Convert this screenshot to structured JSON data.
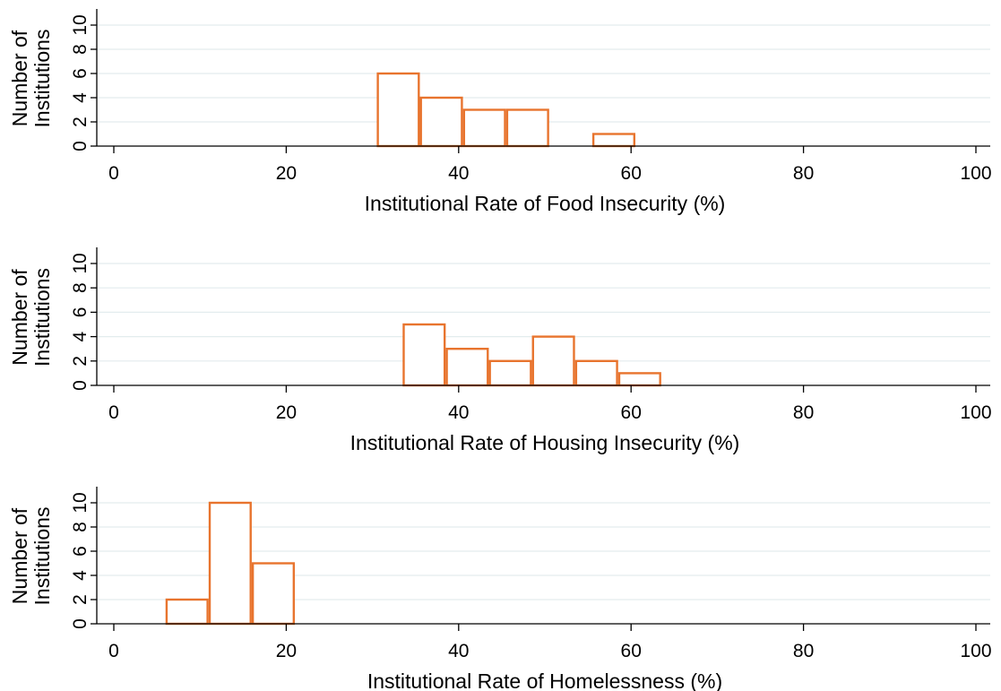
{
  "colors": {
    "bar_stroke": "#e8742e",
    "grid": "#e3ecee",
    "background": "#ffffff"
  },
  "chart_data": [
    {
      "type": "bar",
      "xlabel": "Institutional Rate of Food Insecurity (%)",
      "ylabel_lines": [
        "Number of",
        "Institutions"
      ],
      "xlim": [
        0,
        100
      ],
      "ylim": [
        0,
        10
      ],
      "xticks": [
        "0",
        "20",
        "40",
        "60",
        "80",
        "100"
      ],
      "yticks": [
        "0",
        "2",
        "4",
        "6",
        "8",
        "10"
      ],
      "grid": true,
      "bins": [
        {
          "start": 30.5,
          "end": 35.5,
          "count": 6
        },
        {
          "start": 35.5,
          "end": 40.5,
          "count": 4
        },
        {
          "start": 40.5,
          "end": 45.5,
          "count": 3
        },
        {
          "start": 45.5,
          "end": 50.5,
          "count": 3
        },
        {
          "start": 55.5,
          "end": 60.5,
          "count": 1
        }
      ]
    },
    {
      "type": "bar",
      "xlabel": "Institutional Rate of Housing Insecurity (%)",
      "ylabel_lines": [
        "Number of",
        "Institutions"
      ],
      "xlim": [
        0,
        100
      ],
      "ylim": [
        0,
        10
      ],
      "xticks": [
        "0",
        "20",
        "40",
        "60",
        "80",
        "100"
      ],
      "yticks": [
        "0",
        "2",
        "4",
        "6",
        "8",
        "10"
      ],
      "grid": true,
      "bins": [
        {
          "start": 33.5,
          "end": 38.5,
          "count": 5
        },
        {
          "start": 38.5,
          "end": 43.5,
          "count": 3
        },
        {
          "start": 43.5,
          "end": 48.5,
          "count": 2
        },
        {
          "start": 48.5,
          "end": 53.5,
          "count": 4
        },
        {
          "start": 53.5,
          "end": 58.5,
          "count": 2
        },
        {
          "start": 58.5,
          "end": 63.5,
          "count": 1
        }
      ]
    },
    {
      "type": "bar",
      "xlabel": "Institutional Rate of Homelessness (%)",
      "ylabel_lines": [
        "Number of",
        "Institutions"
      ],
      "xlim": [
        0,
        100
      ],
      "ylim": [
        0,
        10
      ],
      "xticks": [
        "0",
        "20",
        "40",
        "60",
        "80",
        "100"
      ],
      "yticks": [
        "0",
        "2",
        "4",
        "6",
        "8",
        "10"
      ],
      "grid": true,
      "bins": [
        {
          "start": 6.0,
          "end": 11.0,
          "count": 2
        },
        {
          "start": 11.0,
          "end": 16.0,
          "count": 10
        },
        {
          "start": 16.0,
          "end": 21.0,
          "count": 5
        }
      ]
    }
  ]
}
